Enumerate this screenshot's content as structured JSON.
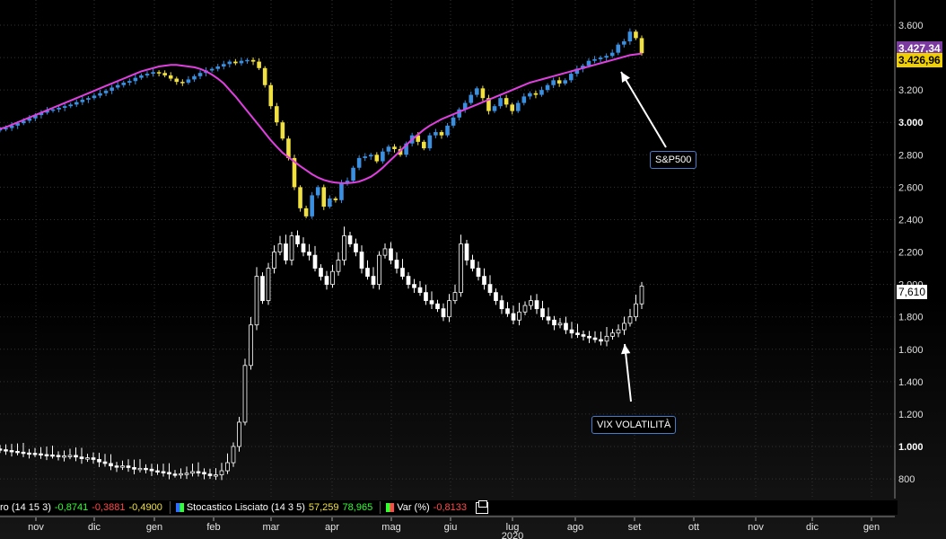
{
  "chart_data": {
    "type": "candlestick",
    "x_axis": {
      "months": [
        "nov",
        "dic",
        "gen",
        "feb",
        "mar",
        "apr",
        "mag",
        "giu",
        "lug",
        "ago",
        "set",
        "ott",
        "nov",
        "dic",
        "gen"
      ],
      "year_label": "2020"
    },
    "y_axis": {
      "ticks": [
        "3.600",
        "3.400",
        "3.200",
        "3.000",
        "2.800",
        "2.600",
        "2.400",
        "2.200",
        "2.000",
        "1.800",
        "1.600",
        "1.400",
        "1.200",
        "1.000",
        "800"
      ],
      "bold_ticks": [
        "3.000",
        "1.000"
      ],
      "range": [
        650,
        3700
      ]
    },
    "series": [
      {
        "name": "S&P500",
        "last_value": "3.426,96",
        "badge_color": "#f0d000",
        "hidden_badge": "3.427,34",
        "hidden_badge_color": "#7a3aa0",
        "up_color": "#3b8fe0",
        "down_color": "#f0e040",
        "closes": [
          2960,
          2965,
          2980,
          2995,
          3010,
          3025,
          3045,
          3060,
          3075,
          3080,
          3090,
          3100,
          3110,
          3125,
          3140,
          3150,
          3165,
          3180,
          3195,
          3215,
          3230,
          3245,
          3255,
          3275,
          3290,
          3300,
          3310,
          3305,
          3290,
          3270,
          3250,
          3245,
          3265,
          3285,
          3305,
          3320,
          3330,
          3345,
          3360,
          3375,
          3365,
          3380,
          3385,
          3375,
          3335,
          3230,
          3100,
          3000,
          2900,
          2780,
          2600,
          2470,
          2420,
          2550,
          2600,
          2480,
          2530,
          2520,
          2630,
          2640,
          2720,
          2780,
          2790,
          2800,
          2760,
          2820,
          2850,
          2835,
          2800,
          2870,
          2920,
          2880,
          2840,
          2920,
          2940,
          2920,
          2980,
          3030,
          3080,
          3120,
          3170,
          3210,
          3150,
          3070,
          3100,
          3150,
          3110,
          3070,
          3120,
          3160,
          3180,
          3170,
          3200,
          3230,
          3260,
          3240,
          3260,
          3300,
          3330,
          3350,
          3380,
          3390,
          3400,
          3410,
          3430,
          3480,
          3500,
          3560,
          3520,
          3427
        ],
        "ma": [
          2960,
          2970,
          2985,
          3000,
          3015,
          3030,
          3045,
          3060,
          3075,
          3090,
          3105,
          3120,
          3135,
          3150,
          3165,
          3180,
          3195,
          3210,
          3225,
          3240,
          3255,
          3270,
          3285,
          3300,
          3315,
          3325,
          3335,
          3345,
          3350,
          3355,
          3355,
          3350,
          3345,
          3340,
          3330,
          3315,
          3295,
          3270,
          3240,
          3200,
          3160,
          3115,
          3070,
          3025,
          2980,
          2935,
          2890,
          2850,
          2812,
          2785,
          2758,
          2730,
          2705,
          2680,
          2660,
          2645,
          2635,
          2628,
          2625,
          2625,
          2628,
          2635,
          2648,
          2665,
          2690,
          2720,
          2755,
          2790,
          2825,
          2860,
          2895,
          2925,
          2955,
          2980,
          3000,
          3020,
          3035,
          3050,
          3065,
          3080,
          3095,
          3110,
          3125,
          3140,
          3155,
          3170,
          3185,
          3200,
          3215,
          3230,
          3245,
          3255,
          3265,
          3275,
          3285,
          3295,
          3305,
          3315,
          3325,
          3335,
          3345,
          3355,
          3365,
          3375,
          3385,
          3395,
          3405,
          3415,
          3420,
          3425
        ]
      },
      {
        "name": "VIX VOLATILITÀ",
        "last_value": "7,610",
        "badge_color": "#ffffff",
        "closes": [
          980,
          975,
          970,
          965,
          960,
          958,
          955,
          950,
          948,
          945,
          940,
          942,
          945,
          935,
          925,
          930,
          920,
          905,
          895,
          880,
          875,
          880,
          870,
          860,
          865,
          860,
          850,
          845,
          840,
          830,
          828,
          832,
          835,
          845,
          840,
          830,
          820,
          825,
          850,
          900,
          1000,
          1150,
          1500,
          1750,
          2050,
          1900,
          2100,
          2200,
          2250,
          2150,
          2300,
          2250,
          2200,
          2180,
          2100,
          2050,
          2000,
          2080,
          2150,
          2300,
          2250,
          2200,
          2100,
          2050,
          2000,
          2180,
          2220,
          2150,
          2100,
          2050,
          2000,
          1980,
          1950,
          1900,
          1880,
          1850,
          1800,
          1900,
          1950,
          2250,
          2150,
          2100,
          2050,
          2000,
          1950,
          1900,
          1850,
          1820,
          1780,
          1830,
          1870,
          1900,
          1850,
          1800,
          1780,
          1750,
          1760,
          1720,
          1700,
          1690,
          1680,
          1670,
          1660,
          1650,
          1680,
          1700,
          1720,
          1760,
          1800,
          1880,
          1990
        ]
      }
    ]
  },
  "legend": {
    "items": [
      {
        "text": "ro (14 15 3)",
        "values": [
          "-0,8741",
          "-0,3881",
          "-0,4900"
        ],
        "value_colors": [
          "#30ff30",
          "#ff4a4a",
          "#f0e040"
        ]
      },
      {
        "text": "Stocastico Lisciato (14 3 5)",
        "swatch_colors": [
          "#2f6cff",
          "#30ff30"
        ],
        "values": [
          "57,259",
          "78,965"
        ],
        "value_colors": [
          "#f0e040",
          "#30ff30"
        ]
      },
      {
        "text": "Var (%)",
        "swatch_colors": [
          "#30ff30",
          "#ff4a4a"
        ],
        "values": [
          "-0,8133"
        ],
        "value_colors": [
          "#ff4a4a"
        ]
      }
    ]
  },
  "colors": {
    "ma_line": "#e040e0",
    "arrow": "#ffffff",
    "grid": "#333333",
    "callout_border": "#4a7bc8"
  },
  "icons": {
    "window_button": "restore-window-icon"
  }
}
